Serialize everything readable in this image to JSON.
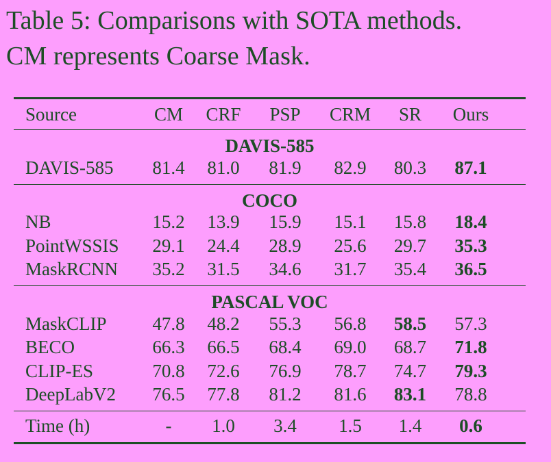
{
  "caption": {
    "line1": "Table 5: Comparisons with SOTA methods.",
    "line2": "CM represents Coarse Mask."
  },
  "table": {
    "columns": [
      "Source",
      "CM",
      "CRF",
      "PSP",
      "CRM",
      "SR",
      "Ours"
    ],
    "sections": [
      {
        "title": "DAVIS-585",
        "rows": [
          {
            "source": "DAVIS-585",
            "values": [
              "81.4",
              "81.0",
              "81.9",
              "82.9",
              "80.3",
              "87.1"
            ],
            "bold": [
              5
            ]
          }
        ]
      },
      {
        "title": "COCO",
        "rows": [
          {
            "source": "NB",
            "values": [
              "15.2",
              "13.9",
              "15.9",
              "15.1",
              "15.8",
              "18.4"
            ],
            "bold": [
              5
            ]
          },
          {
            "source": "PointWSSIS",
            "values": [
              "29.1",
              "24.4",
              "28.9",
              "25.6",
              "29.7",
              "35.3"
            ],
            "bold": [
              5
            ]
          },
          {
            "source": "MaskRCNN",
            "values": [
              "35.2",
              "31.5",
              "34.6",
              "31.7",
              "35.4",
              "36.5"
            ],
            "bold": [
              5
            ]
          }
        ]
      },
      {
        "title": "PASCAL VOC",
        "rows": [
          {
            "source": "MaskCLIP",
            "values": [
              "47.8",
              "48.2",
              "55.3",
              "56.8",
              "58.5",
              "57.3"
            ],
            "bold": [
              4
            ]
          },
          {
            "source": "BECO",
            "values": [
              "66.3",
              "66.5",
              "68.4",
              "69.0",
              "68.7",
              "71.8"
            ],
            "bold": [
              5
            ]
          },
          {
            "source": "CLIP-ES",
            "values": [
              "70.8",
              "72.6",
              "76.9",
              "78.7",
              "74.7",
              "79.3"
            ],
            "bold": [
              5
            ]
          },
          {
            "source": "DeepLabV2",
            "values": [
              "76.5",
              "77.8",
              "81.2",
              "81.6",
              "83.1",
              "78.8"
            ],
            "bold": [
              4
            ]
          }
        ]
      }
    ],
    "time_row": {
      "source": "Time (h)",
      "values": [
        "-",
        "1.0",
        "3.4",
        "1.5",
        "1.4",
        "0.6"
      ],
      "bold": [
        5
      ]
    }
  },
  "colors": {
    "background": "#fd9efd",
    "text": "#1d4d26"
  }
}
